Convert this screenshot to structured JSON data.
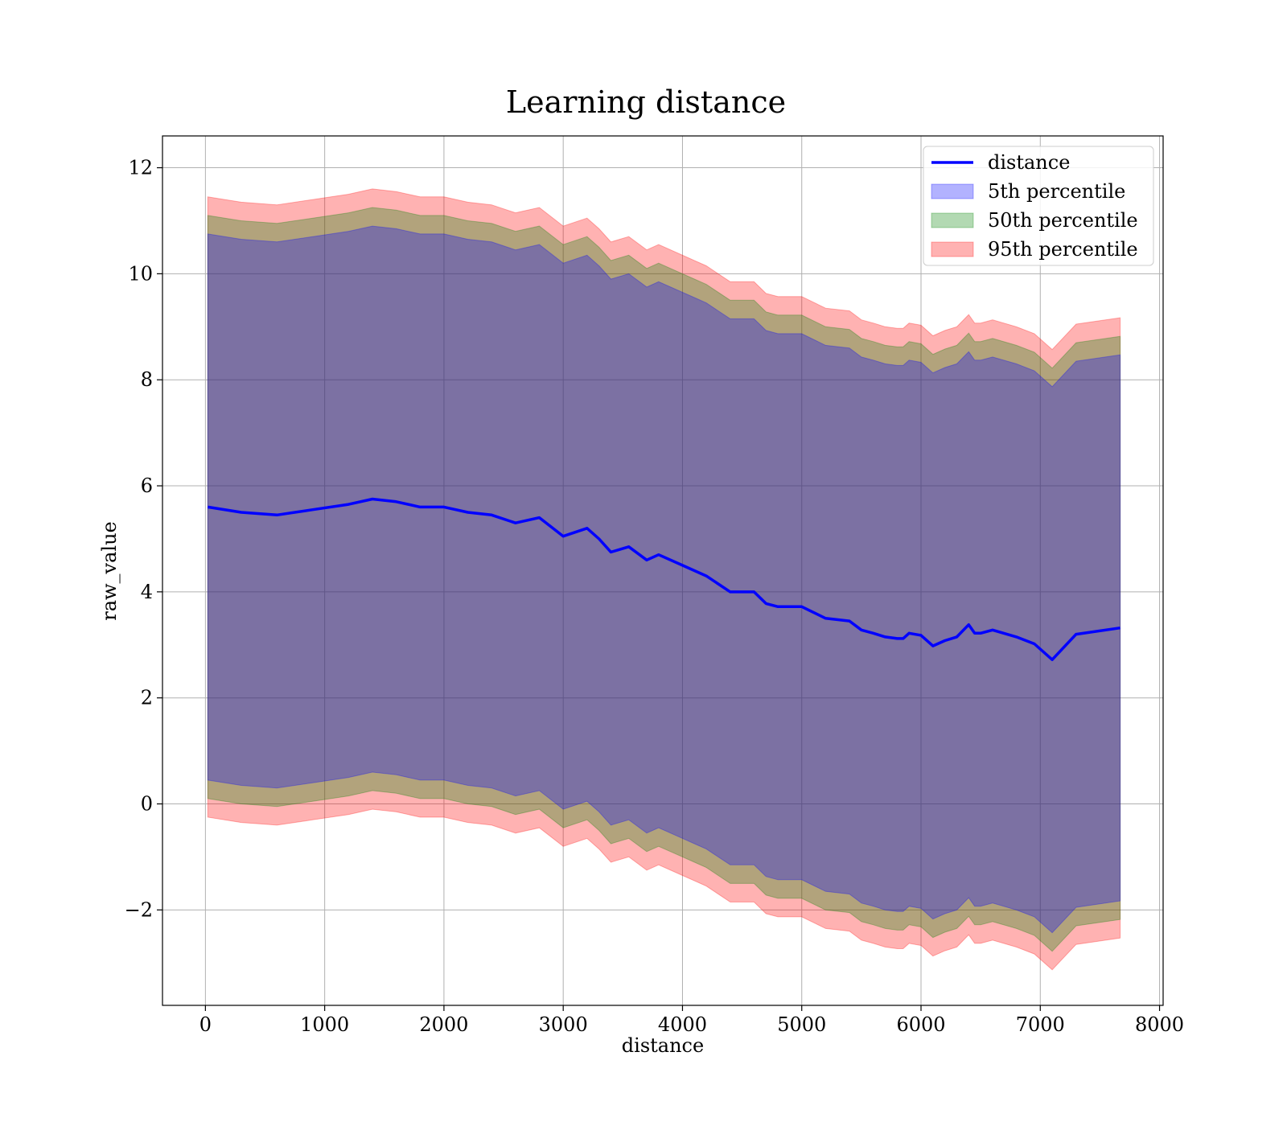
{
  "chart_data": {
    "type": "line",
    "title": "Learning distance",
    "xlabel": "distance",
    "ylabel": "raw_value",
    "xlim": [
      -360,
      8030
    ],
    "ylim": [
      -3.8,
      12.6
    ],
    "x_ticks": [
      0,
      1000,
      2000,
      3000,
      4000,
      5000,
      6000,
      7000,
      8000
    ],
    "y_ticks": [
      12,
      10,
      8,
      6,
      4,
      2,
      0,
      -2
    ],
    "y_tick_labels": [
      "12",
      "10",
      "8",
      "6",
      "4",
      "2",
      "0",
      "−2"
    ],
    "grid": true,
    "legend_position": "top-right",
    "x": [
      20,
      300,
      600,
      900,
      1200,
      1400,
      1600,
      1800,
      2000,
      2200,
      2400,
      2600,
      2800,
      3000,
      3200,
      3300,
      3400,
      3550,
      3700,
      3800,
      4000,
      4100,
      4200,
      4300,
      4400,
      4500,
      4600,
      4700,
      4800,
      5000,
      5200,
      5400,
      5500,
      5600,
      5700,
      5800,
      5850,
      5900,
      6000,
      6100,
      6200,
      6300,
      6400,
      6450,
      6500,
      6600,
      6800,
      6950,
      7100,
      7300,
      7670
    ],
    "series": [
      {
        "name": "distance",
        "kind": "line",
        "color": "#0000ff",
        "values": [
          5.6,
          5.5,
          5.45,
          5.55,
          5.65,
          5.75,
          5.7,
          5.6,
          5.6,
          5.5,
          5.45,
          5.3,
          5.4,
          5.05,
          5.2,
          5.0,
          4.75,
          4.85,
          4.6,
          4.7,
          4.5,
          4.4,
          4.3,
          4.15,
          4.0,
          4.0,
          4.0,
          3.78,
          3.72,
          3.72,
          3.5,
          3.45,
          3.28,
          3.22,
          3.15,
          3.12,
          3.12,
          3.22,
          3.18,
          2.98,
          3.08,
          3.15,
          3.38,
          3.22,
          3.22,
          3.28,
          3.15,
          3.02,
          2.72,
          3.2,
          3.32
        ]
      },
      {
        "name": "5th percentile",
        "kind": "band",
        "color": "#0000ff",
        "upper_offset": 5.15,
        "lower_offset": 5.15
      },
      {
        "name": "50th percentile",
        "kind": "band",
        "color": "#008000",
        "upper_offset": 5.5,
        "lower_offset": 5.5
      },
      {
        "name": "95th percentile",
        "kind": "band",
        "color": "#ff0000",
        "upper_offset": 5.85,
        "lower_offset": 5.85
      }
    ]
  }
}
